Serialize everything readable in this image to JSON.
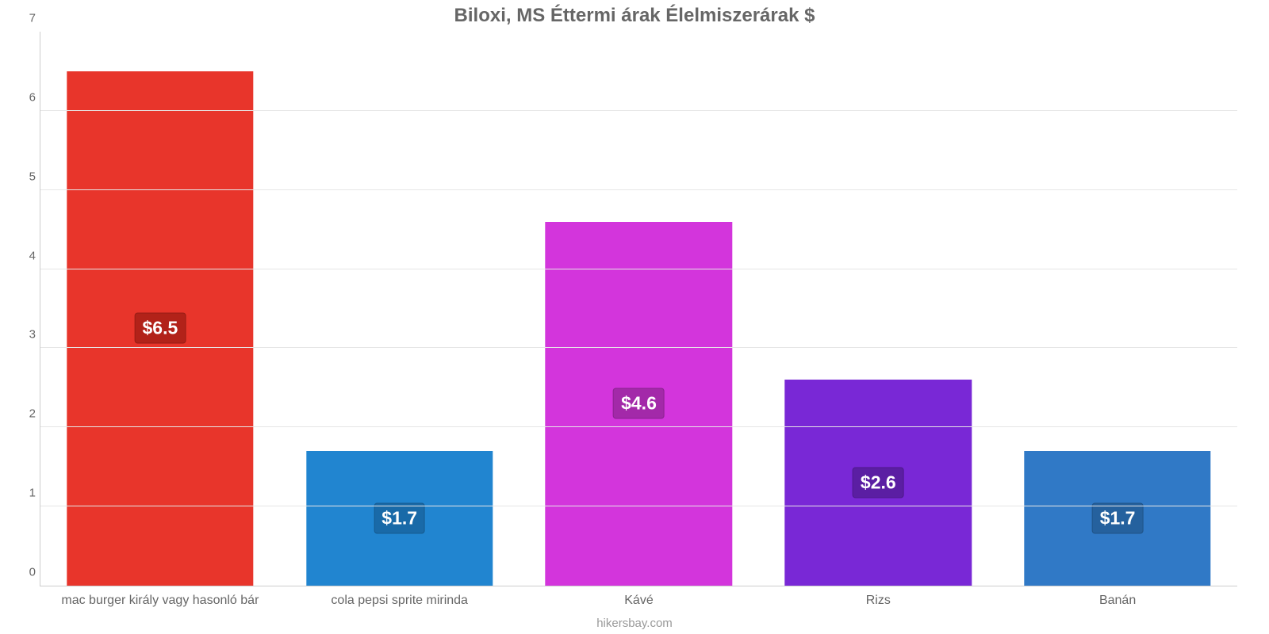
{
  "chart": {
    "type": "bar",
    "title": "Biloxi, MS Éttermi árak Élelmiszerárak $",
    "title_fontsize": 24,
    "title_color": "#666666",
    "background_color": "#ffffff",
    "grid_color": "#e6e6e6",
    "axis_line_color": "#cccccc",
    "label_color": "#666666",
    "label_fontsize": 16,
    "ytick_fontsize": 15,
    "value_badge_fontsize": 23,
    "ylim": [
      0,
      7
    ],
    "ytick_step": 1,
    "bar_width_pct": 78,
    "categories": [
      "mac burger király vagy hasonló bár",
      "cola pepsi sprite mirinda",
      "Kávé",
      "Rizs",
      "Banán"
    ],
    "values": [
      6.5,
      1.7,
      4.6,
      2.6,
      1.7
    ],
    "display_values": [
      "$6.5",
      "$1.7",
      "$4.6",
      "$2.6",
      "$1.7"
    ],
    "bar_colors": [
      "#e8352b",
      "#2185d0",
      "#d335dc",
      "#7928d6",
      "#3079c6"
    ],
    "badge_colors": [
      "#b22219",
      "#196aa8",
      "#a329a9",
      "#5b1ea3",
      "#25619e"
    ],
    "attribution": "hikersbay.com",
    "attribution_color": "#999999"
  }
}
